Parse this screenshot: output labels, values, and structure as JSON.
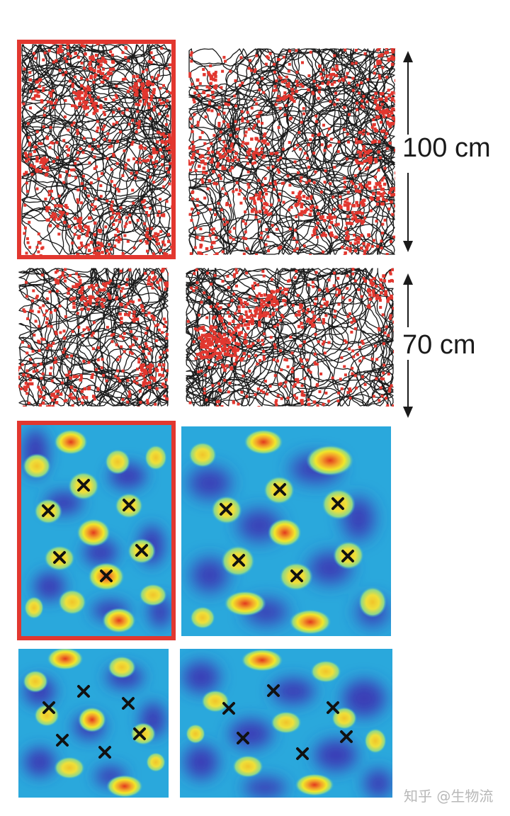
{
  "scale_bars": {
    "top_label": "100 cm",
    "bottom_label": "70 cm"
  },
  "watermark": "知乎 @生物流",
  "colors": {
    "trajectory": "#1c1c1c",
    "spike": "#e2372f",
    "frame": "#e2372f",
    "map_background": "#2aa8dc",
    "map_low": "#3a3ab8",
    "field_edge": "#5cc8a0",
    "field_mid": "#f1e62a",
    "field_peak": "#e23a1e"
  },
  "panels": {
    "trajectory_large_left": {
      "highlighted": true
    },
    "trajectory_large_right": {
      "highlighted": false
    },
    "trajectory_small_left": {
      "highlighted": false
    },
    "trajectory_small_right": {
      "highlighted": false
    },
    "ratemap_large_left": {
      "highlighted": true
    },
    "ratemap_large_right": {
      "highlighted": false
    },
    "ratemap_small_left": {
      "highlighted": false
    },
    "ratemap_small_right": {
      "highlighted": false
    }
  }
}
